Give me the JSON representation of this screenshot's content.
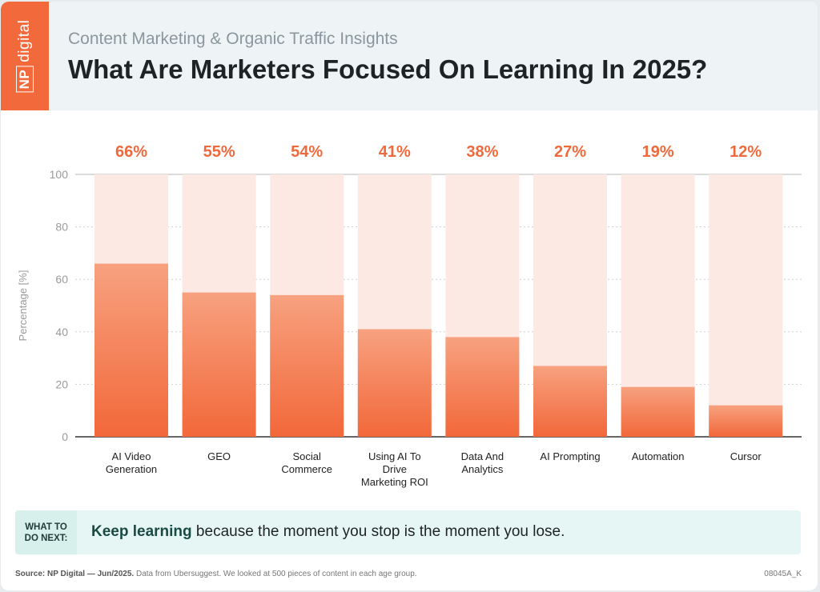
{
  "header": {
    "brand_np": "NP",
    "brand_word": "digital",
    "subtitle": "Content Marketing & Organic Traffic Insights",
    "title": "What Are Marketers Focused On Learning In 2025?"
  },
  "chart_data": {
    "type": "bar",
    "title": "What Are Marketers Focused On Learning In 2025?",
    "ylabel": "Percentage [%]",
    "xlabel": "",
    "ylim": [
      0,
      100
    ],
    "yticks": [
      0,
      20,
      40,
      60,
      80,
      100
    ],
    "grid": true,
    "categories": [
      [
        "AI Video",
        "Generation"
      ],
      [
        "GEO"
      ],
      [
        "Social",
        "Commerce"
      ],
      [
        "Using AI To",
        "Drive",
        "Marketing ROI"
      ],
      [
        "Data And",
        "Analytics"
      ],
      [
        "AI Prompting"
      ],
      [
        "Automation"
      ],
      [
        "Cursor"
      ]
    ],
    "values": [
      66,
      55,
      54,
      41,
      38,
      27,
      19,
      12
    ],
    "value_labels": [
      "66%",
      "55%",
      "54%",
      "41%",
      "38%",
      "27%",
      "19%",
      "12%"
    ],
    "colors": {
      "bar_top": "#f7a17f",
      "bar_bottom": "#f2683a",
      "track": "#fde9e3",
      "value_label": "#ee6a3d"
    }
  },
  "cta": {
    "label": "WHAT TO DO NEXT:",
    "strong": "Keep learning",
    "text": " because the moment you stop is the moment you lose."
  },
  "footer": {
    "source_strong": "Source: NP Digital — Jun/2025.",
    "source_text": " Data from Ubersuggest. We looked at 500 pieces of content in each age group.",
    "code": "08045A_K"
  },
  "colors": {
    "brand": "#f26a3c",
    "header_bg": "#eef3f5",
    "cta_bg": "#e6f6f4"
  }
}
